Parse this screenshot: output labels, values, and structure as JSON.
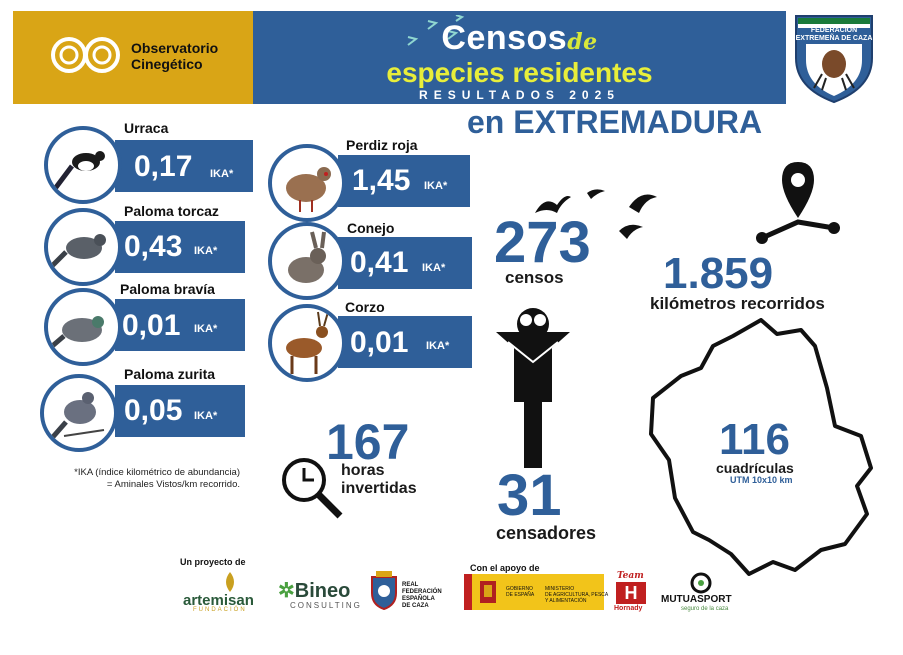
{
  "header": {
    "brand_line1": "Observatorio",
    "brand_line2": "Cinegético",
    "title_main": "Censos",
    "title_de": "de",
    "title_sub": "especies residentes",
    "title_result": "RESULTADOS 2025",
    "region": "en EXTREMADURA",
    "federation_line1": "FEDERACIÓN",
    "federation_line2": "EXTREMEÑA DE CAZA"
  },
  "species": [
    {
      "name": "Urraca",
      "value": "0,17",
      "unit": "IKA*"
    },
    {
      "name": "Paloma torcaz",
      "value": "0,43",
      "unit": "IKA*"
    },
    {
      "name": "Paloma bravía",
      "value": "0,01",
      "unit": "IKA*"
    },
    {
      "name": "Paloma zurita",
      "value": "0,05",
      "unit": "IKA*"
    },
    {
      "name": "Perdiz roja",
      "value": "1,45",
      "unit": "IKA*"
    },
    {
      "name": "Conejo",
      "value": "0,41",
      "unit": "IKA*"
    },
    {
      "name": "Corzo",
      "value": "0,01",
      "unit": "IKA*"
    }
  ],
  "footnote": {
    "line1": "*IKA (índice kilométrico de abundancia)",
    "line2": "= Aminales Vistos/km recorrido."
  },
  "stats": {
    "censos_value": "273",
    "censos_label": "censos",
    "km_value": "1.859",
    "km_label": "kilómetros recorridos",
    "horas_value": "167",
    "horas_label1": "horas",
    "horas_label2": "invertidas",
    "censadores_value": "31",
    "censadores_label": "censadores",
    "cuadriculas_value": "116",
    "cuadriculas_label": "cuadrículas",
    "cuadriculas_sub": "UTM 10x10 km"
  },
  "footer": {
    "project_label": "Un proyecto de",
    "support_label": "Con el apoyo de",
    "artemisan": "artemisan",
    "artemisan_sub": "FUNDACIÓN",
    "bineo": "Bineo",
    "bineo_sub": "CONSULTING",
    "rfec_line1": "REAL",
    "rfec_line2": "FEDERACIÓN",
    "rfec_line3": "ESPAÑOLA",
    "rfec_line4": "DE CAZA",
    "gov_line1": "GOBIERNO",
    "gov_line2": "DE ESPAÑA",
    "ministry_line1": "MINISTERIO",
    "ministry_line2": "DE AGRICULTURA, PESCA",
    "ministry_line3": "Y ALIMENTACIÓN",
    "team": "Team",
    "hornady": "Hornady",
    "mutuasport": "MUTUASPORT",
    "mutuasport_sub": "seguro de la caza"
  },
  "colors": {
    "blue": "#2f5f99",
    "gold": "#d9a516",
    "yellow_title": "#e8ee3a"
  }
}
